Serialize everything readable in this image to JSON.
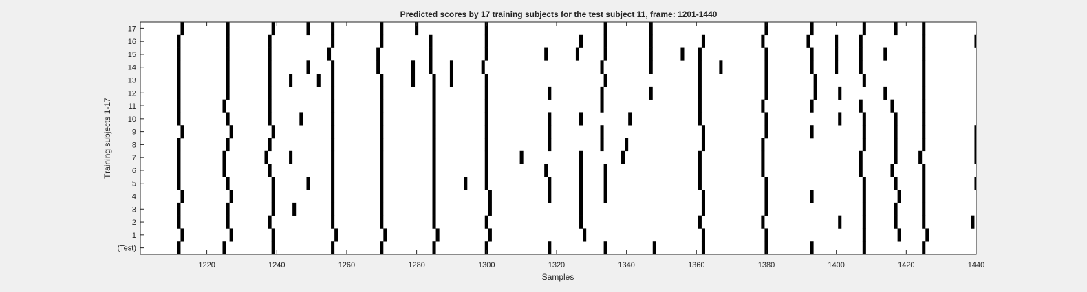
{
  "chart_data": {
    "type": "heatmap",
    "title": "Predicted scores by 17 training subjects for the test subject 11, frame: 1201-1440",
    "xlabel": "Samples",
    "ylabel": "Training subjects 1-17",
    "xlim": [
      1201,
      1440
    ],
    "xticks": [
      1220,
      1240,
      1260,
      1280,
      1300,
      1320,
      1340,
      1360,
      1380,
      1400,
      1420,
      1440
    ],
    "yticklabels": [
      "(Test)",
      "1",
      "2",
      "3",
      "4",
      "5",
      "6",
      "7",
      "8",
      "9",
      "10",
      "11",
      "12",
      "13",
      "14",
      "15",
      "16",
      "17"
    ],
    "colors": {
      "background": "#ffffff",
      "mark": "#000000",
      "figure": "#f0f0f0"
    },
    "rows": [
      {
        "label": "(Test)",
        "x": [
          1212,
          1225,
          1239,
          1256,
          1270,
          1285,
          1300,
          1318,
          1334,
          1348,
          1362,
          1380,
          1393,
          1408,
          1425
        ]
      },
      {
        "label": "1",
        "x": [
          1213,
          1227,
          1239,
          1257,
          1271,
          1286,
          1301,
          1328,
          1362,
          1380,
          1408,
          1418,
          1426
        ]
      },
      {
        "label": "2",
        "x": [
          1212,
          1226,
          1238,
          1256,
          1270,
          1285,
          1300,
          1327,
          1361,
          1379,
          1401,
          1408,
          1417,
          1425,
          1439
        ]
      },
      {
        "label": "3",
        "x": [
          1212,
          1226,
          1239,
          1245,
          1256,
          1270,
          1285,
          1301,
          1327,
          1362,
          1380,
          1408,
          1417,
          1425
        ]
      },
      {
        "label": "4",
        "x": [
          1213,
          1227,
          1239,
          1256,
          1270,
          1285,
          1301,
          1318,
          1327,
          1334,
          1362,
          1380,
          1393,
          1408,
          1418,
          1425
        ]
      },
      {
        "label": "5",
        "x": [
          1212,
          1226,
          1239,
          1249,
          1256,
          1270,
          1285,
          1294,
          1300,
          1318,
          1327,
          1334,
          1361,
          1380,
          1408,
          1417,
          1425,
          1440
        ]
      },
      {
        "label": "6",
        "x": [
          1212,
          1225,
          1238,
          1256,
          1270,
          1285,
          1300,
          1317,
          1327,
          1334,
          1361,
          1379,
          1407,
          1416,
          1425
        ]
      },
      {
        "label": "7",
        "x": [
          1212,
          1225,
          1237,
          1244,
          1256,
          1270,
          1285,
          1300,
          1310,
          1327,
          1339,
          1361,
          1379,
          1407,
          1417,
          1424,
          1440
        ]
      },
      {
        "label": "8",
        "x": [
          1212,
          1226,
          1238,
          1256,
          1270,
          1285,
          1300,
          1318,
          1333,
          1340,
          1362,
          1379,
          1408,
          1417,
          1425,
          1440
        ]
      },
      {
        "label": "9",
        "x": [
          1213,
          1227,
          1239,
          1256,
          1270,
          1285,
          1300,
          1318,
          1333,
          1362,
          1380,
          1393,
          1408,
          1417,
          1425,
          1440
        ]
      },
      {
        "label": "10",
        "x": [
          1212,
          1226,
          1238,
          1247,
          1256,
          1270,
          1285,
          1300,
          1318,
          1327,
          1341,
          1361,
          1380,
          1401,
          1408,
          1417,
          1425
        ]
      },
      {
        "label": "11",
        "x": [
          1212,
          1225,
          1238,
          1256,
          1270,
          1285,
          1300,
          1333,
          1361,
          1379,
          1393,
          1407,
          1416,
          1425
        ]
      },
      {
        "label": "12",
        "x": [
          1212,
          1226,
          1238,
          1256,
          1270,
          1285,
          1300,
          1318,
          1333,
          1347,
          1361,
          1380,
          1394,
          1401,
          1414,
          1425
        ]
      },
      {
        "label": "13",
        "x": [
          1212,
          1226,
          1238,
          1244,
          1252,
          1256,
          1270,
          1279,
          1285,
          1290,
          1300,
          1334,
          1361,
          1380,
          1394,
          1408,
          1425
        ]
      },
      {
        "label": "14",
        "x": [
          1212,
          1226,
          1238,
          1249,
          1256,
          1269,
          1279,
          1284,
          1290,
          1299,
          1333,
          1347,
          1361,
          1367,
          1380,
          1393,
          1400,
          1407,
          1425
        ]
      },
      {
        "label": "15",
        "x": [
          1212,
          1226,
          1238,
          1255,
          1269,
          1284,
          1300,
          1317,
          1326,
          1334,
          1347,
          1356,
          1361,
          1380,
          1393,
          1400,
          1407,
          1414,
          1425
        ]
      },
      {
        "label": "16",
        "x": [
          1212,
          1226,
          1238,
          1256,
          1270,
          1284,
          1300,
          1327,
          1334,
          1347,
          1362,
          1379,
          1392,
          1400,
          1407,
          1425,
          1440
        ]
      },
      {
        "label": "17",
        "x": [
          1213,
          1226,
          1239,
          1249,
          1256,
          1270,
          1280,
          1300,
          1334,
          1347,
          1380,
          1393,
          1408,
          1417,
          1425
        ]
      }
    ]
  }
}
